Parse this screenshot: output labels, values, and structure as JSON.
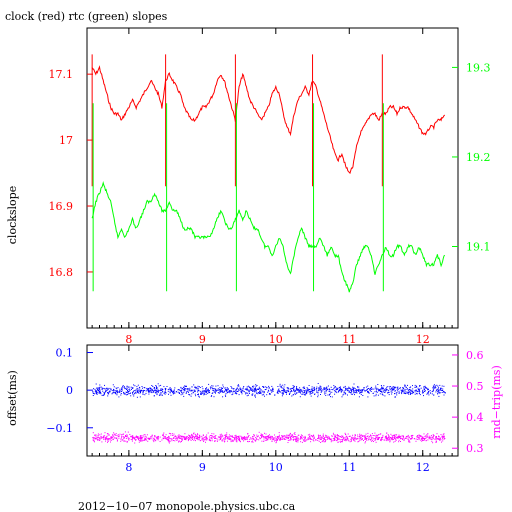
{
  "chart_data": [
    {
      "type": "line",
      "title": "clock (red) rtc (green) slopes",
      "ylabel_left": "clockslope",
      "xlim": [
        7.43,
        12.48
      ],
      "ylim_left": [
        16.715,
        17.17
      ],
      "ylim_right": [
        19.009,
        19.344
      ],
      "x_ticks": [
        "8",
        "9",
        "10",
        "11",
        "12"
      ],
      "y_ticks_left": [
        "17.1",
        "17",
        "16.9",
        "16.8"
      ],
      "y_ticks_right": [
        "19.3",
        "19.2",
        "19.1"
      ],
      "grid": false,
      "colors": {
        "frame": "#000000",
        "clock": "#ff0000",
        "rtc": "#00ff00",
        "left_axis": "#ff0000",
        "right_axis": "#00ff00"
      },
      "series": [
        {
          "axis": "left",
          "x": [
            7.5,
            7.55,
            7.6,
            7.65,
            7.7,
            7.75,
            7.8,
            7.85,
            7.9,
            7.95,
            8.0,
            8.05,
            8.1,
            8.15,
            8.2,
            8.25,
            8.3,
            8.35,
            8.4,
            8.45,
            8.5,
            8.55,
            8.6,
            8.65,
            8.7,
            8.75,
            8.8,
            8.85,
            8.9,
            8.95,
            9.0,
            9.05,
            9.1,
            9.15,
            9.2,
            9.25,
            9.3,
            9.35,
            9.4,
            9.45,
            9.5,
            9.55,
            9.6,
            9.65,
            9.7,
            9.75,
            9.8,
            9.85,
            9.9,
            9.95,
            10.0,
            10.05,
            10.1,
            10.15,
            10.2,
            10.25,
            10.3,
            10.35,
            10.4,
            10.45,
            10.5,
            10.55,
            10.6,
            10.65,
            10.7,
            10.75,
            10.8,
            10.85,
            10.9,
            10.95,
            11.0,
            11.05,
            11.1,
            11.15,
            11.2,
            11.25,
            11.3,
            11.35,
            11.4,
            11.45,
            11.5,
            11.55,
            11.6,
            11.65,
            11.7,
            11.75,
            11.8,
            11.85,
            11.9,
            11.95,
            12.0,
            12.05,
            12.1,
            12.15,
            12.2,
            12.25,
            12.3
          ],
          "y": [
            17.11,
            17.1,
            17.11,
            17.09,
            17.07,
            17.05,
            17.04,
            17.04,
            17.03,
            17.04,
            17.05,
            17.06,
            17.05,
            17.06,
            17.07,
            17.08,
            17.09,
            17.08,
            17.07,
            17.05,
            17.09,
            17.1,
            17.09,
            17.08,
            17.07,
            17.05,
            17.04,
            17.03,
            17.03,
            17.04,
            17.05,
            17.05,
            17.06,
            17.07,
            17.09,
            17.1,
            17.09,
            17.07,
            17.05,
            17.03,
            17.08,
            17.1,
            17.08,
            17.06,
            17.05,
            17.04,
            17.03,
            17.04,
            17.05,
            17.07,
            17.08,
            17.07,
            17.04,
            17.02,
            17.01,
            17.04,
            17.06,
            17.07,
            17.08,
            17.07,
            17.09,
            17.08,
            17.06,
            17.04,
            17.02,
            17.0,
            16.98,
            16.97,
            16.98,
            16.96,
            16.95,
            16.96,
            16.99,
            17.01,
            17.02,
            17.03,
            17.04,
            17.04,
            17.03,
            17.04,
            17.04,
            17.05,
            17.05,
            17.04,
            17.05,
            17.05,
            17.05,
            17.04,
            17.03,
            17.02,
            17.01,
            17.01,
            17.02,
            17.02,
            17.03,
            17.03,
            17.04
          ]
        },
        {
          "axis": "right",
          "x": [
            7.5,
            7.55,
            7.6,
            7.65,
            7.7,
            7.75,
            7.8,
            7.85,
            7.9,
            7.95,
            8.0,
            8.05,
            8.1,
            8.15,
            8.2,
            8.25,
            8.3,
            8.35,
            8.4,
            8.45,
            8.5,
            8.55,
            8.6,
            8.65,
            8.7,
            8.75,
            8.8,
            8.85,
            8.9,
            8.95,
            9.0,
            9.05,
            9.1,
            9.15,
            9.2,
            9.25,
            9.3,
            9.35,
            9.4,
            9.45,
            9.5,
            9.55,
            9.6,
            9.65,
            9.7,
            9.75,
            9.8,
            9.85,
            9.9,
            9.95,
            10.0,
            10.05,
            10.1,
            10.15,
            10.2,
            10.25,
            10.3,
            10.35,
            10.4,
            10.45,
            10.5,
            10.55,
            10.6,
            10.65,
            10.7,
            10.75,
            10.8,
            10.85,
            10.9,
            10.95,
            11.0,
            11.05,
            11.1,
            11.15,
            11.2,
            11.25,
            11.3,
            11.35,
            11.4,
            11.45,
            11.5,
            11.55,
            11.6,
            11.65,
            11.7,
            11.75,
            11.8,
            11.85,
            11.9,
            11.95,
            12.0,
            12.05,
            12.1,
            12.15,
            12.2,
            12.25,
            12.3
          ],
          "y": [
            19.13,
            19.15,
            19.16,
            19.17,
            19.16,
            19.15,
            19.13,
            19.11,
            19.12,
            19.11,
            19.12,
            19.13,
            19.12,
            19.13,
            19.14,
            19.15,
            19.15,
            19.16,
            19.15,
            19.14,
            19.14,
            19.15,
            19.14,
            19.14,
            19.13,
            19.12,
            19.12,
            19.12,
            19.11,
            19.11,
            19.11,
            19.11,
            19.11,
            19.12,
            19.13,
            19.14,
            19.13,
            19.12,
            19.12,
            19.13,
            19.14,
            19.13,
            19.14,
            19.13,
            19.12,
            19.12,
            19.11,
            19.1,
            19.1,
            19.09,
            19.1,
            19.11,
            19.1,
            19.08,
            19.07,
            19.09,
            19.11,
            19.12,
            19.11,
            19.1,
            19.1,
            19.1,
            19.11,
            19.1,
            19.09,
            19.1,
            19.09,
            19.09,
            19.07,
            19.06,
            19.05,
            19.06,
            19.08,
            19.09,
            19.1,
            19.1,
            19.09,
            19.07,
            19.08,
            19.09,
            19.1,
            19.09,
            19.09,
            19.1,
            19.1,
            19.09,
            19.1,
            19.1,
            19.09,
            19.1,
            19.09,
            19.08,
            19.08,
            19.08,
            19.09,
            19.08,
            19.09
          ]
        }
      ]
    },
    {
      "type": "scatter",
      "ylabel_left": "offset(ms)",
      "ylabel_right": "rnd−trip(ms)",
      "xlim": [
        7.43,
        12.48
      ],
      "ylim_left": [
        -0.175,
        0.12
      ],
      "ylim_right": [
        0.275,
        0.632
      ],
      "x_ticks": [
        "8",
        "9",
        "10",
        "11",
        "12"
      ],
      "y_ticks_left": [
        "0.1",
        "0",
        "−0.1"
      ],
      "y_ticks_right": [
        "0.6",
        "0.5",
        "0.4",
        "0.3"
      ],
      "colors": {
        "frame": "#000000",
        "offset": "#0000ff",
        "rndtrip": "#ff00ff",
        "left_axis": "#0000ff",
        "right_axis": "#ff00ff"
      },
      "series": [
        {
          "axis": "left",
          "x_range": [
            7.5,
            12.3
          ],
          "center": 0.0,
          "spread": 0.02
        },
        {
          "axis": "right",
          "x_range": [
            7.5,
            12.3
          ],
          "center": 0.335,
          "spread": 0.02
        }
      ]
    }
  ],
  "footer": "2012−10−07  monopole.physics.ubc.ca"
}
